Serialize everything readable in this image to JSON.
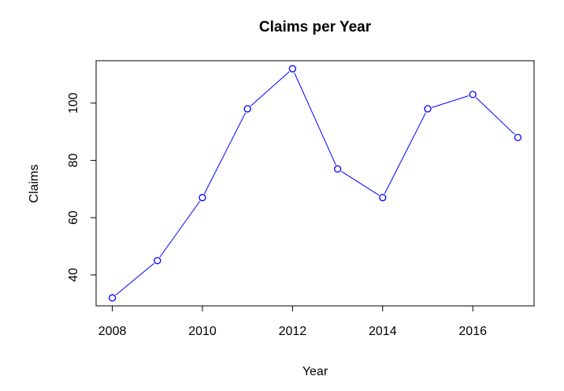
{
  "chart_data": {
    "type": "line",
    "title": "Claims per Year",
    "xlabel": "Year",
    "ylabel": "Claims",
    "x": [
      2008,
      2009,
      2010,
      2011,
      2012,
      2013,
      2014,
      2015,
      2016,
      2017
    ],
    "series": [
      {
        "values": [
          32,
          45,
          67,
          98,
          112,
          77,
          67,
          98,
          103,
          88
        ]
      }
    ],
    "xlim": [
      2007.64,
      2017.36
    ],
    "ylim": [
      29.2,
      114.8
    ],
    "xticks": [
      2008,
      2010,
      2012,
      2014,
      2016
    ],
    "yticks": [
      40,
      60,
      80,
      100
    ],
    "xtick_labels": [
      "2008",
      "2010",
      "2012",
      "2014",
      "2016"
    ],
    "ytick_labels": [
      "40",
      "60",
      "80",
      "100"
    ],
    "color": "#0000ff",
    "marker": "open-circle",
    "grid": false,
    "legend": "none"
  }
}
